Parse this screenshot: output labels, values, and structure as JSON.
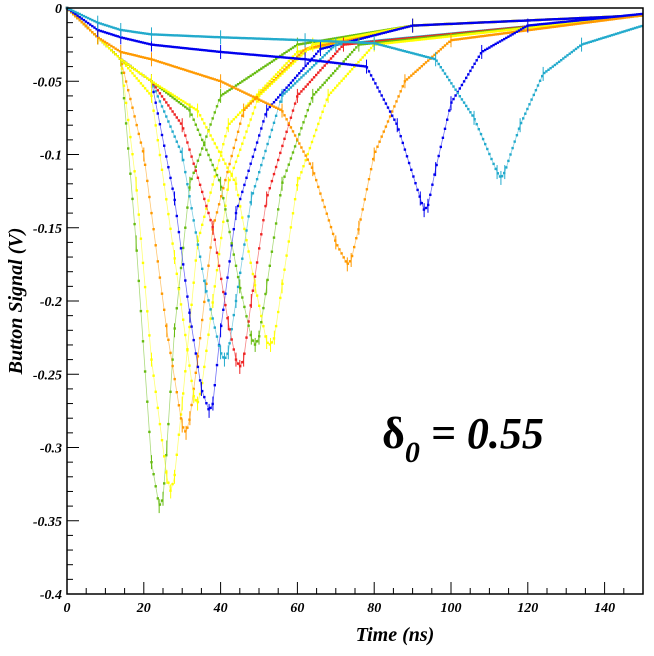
{
  "chart_data": {
    "type": "scatter",
    "title": "",
    "xlabel": "Time (ns)",
    "ylabel": "Button Signal (V)",
    "xlim": [
      0,
      150
    ],
    "ylim": [
      -0.4,
      0
    ],
    "x_ticks": [
      "0",
      "20",
      "40",
      "60",
      "80",
      "100",
      "120",
      "140"
    ],
    "y_ticks": [
      "0",
      "-0.05",
      "-0.1",
      "-0.15",
      "-0.2",
      "-0.25",
      "-0.3",
      "-0.35",
      "-0.4"
    ],
    "grid": false,
    "legend": "none",
    "annotation": {
      "symbol": "δ",
      "subscript": "0",
      "text": " = 0.55"
    },
    "series": [
      {
        "color": "#66bb11",
        "x": [
          0,
          8,
          14,
          18,
          22,
          24,
          25,
          26,
          28,
          32,
          40,
          60,
          90,
          150
        ],
        "y": [
          0,
          -0.02,
          -0.035,
          -0.16,
          -0.31,
          -0.34,
          -0.335,
          -0.3,
          -0.22,
          -0.12,
          -0.06,
          -0.025,
          -0.012,
          -0.005
        ]
      },
      {
        "color": "#ffff00",
        "x": [
          0,
          8,
          14,
          18,
          22,
          26,
          27,
          28,
          30,
          34,
          42,
          60,
          90,
          150
        ],
        "y": [
          0,
          -0.02,
          -0.035,
          -0.12,
          -0.24,
          -0.32,
          -0.33,
          -0.32,
          -0.27,
          -0.16,
          -0.08,
          -0.03,
          -0.012,
          -0.005
        ]
      },
      {
        "color": "#ff9900",
        "x": [
          0,
          8,
          14,
          20,
          26,
          30,
          31,
          32,
          34,
          38,
          46,
          62,
          90,
          150
        ],
        "y": [
          0,
          -0.02,
          -0.035,
          -0.1,
          -0.22,
          -0.285,
          -0.29,
          -0.28,
          -0.24,
          -0.15,
          -0.07,
          -0.028,
          -0.012,
          -0.005
        ]
      },
      {
        "color": "#ffff00",
        "x": [
          0,
          8,
          14,
          22,
          28,
          33,
          34,
          35,
          38,
          42,
          50,
          64,
          90,
          150
        ],
        "y": [
          0,
          -0.02,
          -0.035,
          -0.06,
          -0.17,
          -0.265,
          -0.27,
          -0.26,
          -0.2,
          -0.12,
          -0.06,
          -0.025,
          -0.012,
          -0.005
        ]
      },
      {
        "color": "#0000ee",
        "x": [
          0,
          8,
          14,
          22,
          28,
          32,
          35,
          37,
          38,
          40,
          44,
          52,
          66,
          90,
          150
        ],
        "y": [
          0,
          -0.02,
          -0.035,
          -0.05,
          -0.13,
          -0.21,
          -0.26,
          -0.275,
          -0.27,
          -0.22,
          -0.14,
          -0.07,
          -0.028,
          -0.012,
          -0.005
        ]
      },
      {
        "color": "#22aacc",
        "x": [
          0,
          8,
          14,
          22,
          30,
          36,
          40,
          41,
          42,
          44,
          48,
          56,
          70,
          150
        ],
        "y": [
          0,
          -0.02,
          -0.035,
          -0.05,
          -0.1,
          -0.19,
          -0.235,
          -0.24,
          -0.235,
          -0.2,
          -0.13,
          -0.06,
          -0.025,
          -0.005
        ]
      },
      {
        "color": "#ee2222",
        "x": [
          0,
          8,
          14,
          22,
          30,
          38,
          42,
          44,
          45,
          46,
          48,
          52,
          60,
          72,
          150
        ],
        "y": [
          0,
          -0.02,
          -0.035,
          -0.05,
          -0.08,
          -0.15,
          -0.215,
          -0.24,
          -0.245,
          -0.24,
          -0.2,
          -0.13,
          -0.06,
          -0.025,
          -0.005
        ]
      },
      {
        "color": "#66bb11",
        "x": [
          0,
          8,
          14,
          22,
          32,
          40,
          45,
          48,
          49,
          50,
          52,
          56,
          64,
          76,
          150
        ],
        "y": [
          0,
          -0.02,
          -0.035,
          -0.05,
          -0.07,
          -0.12,
          -0.19,
          -0.225,
          -0.23,
          -0.225,
          -0.19,
          -0.12,
          -0.06,
          -0.025,
          -0.005
        ]
      },
      {
        "color": "#ffff00",
        "x": [
          0,
          8,
          14,
          22,
          34,
          44,
          49,
          52,
          53,
          54,
          56,
          60,
          68,
          80,
          150
        ],
        "y": [
          0,
          -0.02,
          -0.035,
          -0.05,
          -0.07,
          -0.12,
          -0.19,
          -0.228,
          -0.23,
          -0.225,
          -0.19,
          -0.12,
          -0.06,
          -0.025,
          -0.005
        ]
      },
      {
        "color": "#ff9900",
        "x": [
          0,
          8,
          14,
          22,
          40,
          56,
          64,
          70,
          73,
          74,
          76,
          80,
          88,
          100,
          150
        ],
        "y": [
          0,
          -0.02,
          -0.03,
          -0.035,
          -0.05,
          -0.07,
          -0.11,
          -0.16,
          -0.175,
          -0.172,
          -0.15,
          -0.1,
          -0.05,
          -0.022,
          -0.005
        ]
      },
      {
        "color": "#0000ee",
        "x": [
          0,
          8,
          14,
          22,
          40,
          62,
          78,
          86,
          92,
          93,
          94,
          96,
          100,
          108,
          120,
          150
        ],
        "y": [
          0,
          -0.015,
          -0.02,
          -0.025,
          -0.03,
          -0.035,
          -0.04,
          -0.08,
          -0.13,
          -0.138,
          -0.135,
          -0.11,
          -0.065,
          -0.03,
          -0.012,
          -0.004
        ]
      },
      {
        "color": "#22aacc",
        "x": [
          0,
          8,
          14,
          22,
          40,
          62,
          80,
          96,
          106,
          112,
          113,
          114,
          118,
          124,
          134,
          150
        ],
        "y": [
          0,
          -0.01,
          -0.015,
          -0.018,
          -0.02,
          -0.022,
          -0.024,
          -0.035,
          -0.075,
          -0.112,
          -0.116,
          -0.112,
          -0.08,
          -0.045,
          -0.025,
          -0.012
        ]
      }
    ]
  }
}
